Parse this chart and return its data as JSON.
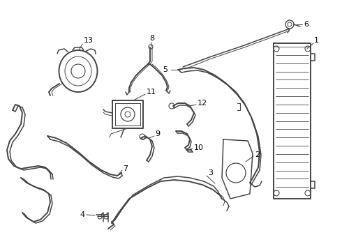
{
  "bg_color": "#ffffff",
  "line_color": "#444444",
  "label_color": "#000000",
  "figsize": [
    4.9,
    3.6
  ],
  "dpi": 100,
  "lw": 1.1,
  "lw_thin": 0.7,
  "lw_thick": 1.4,
  "label_fs": 7.5,
  "arrow_fs": 0.6
}
